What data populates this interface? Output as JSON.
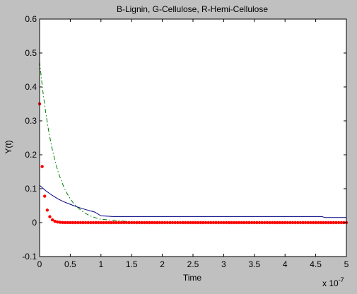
{
  "chart_data": {
    "type": "line",
    "title": "B-Lignin, G-Cellulose, R-Hemi-Cellulose",
    "xlabel": "Time",
    "ylabel": "Y(t)",
    "x_exponent_label": "x 10",
    "x_exponent_power": "-7",
    "xlim": [
      0,
      5
    ],
    "ylim": [
      -0.1,
      0.6
    ],
    "x_ticks": [
      0,
      0.5,
      1,
      1.5,
      2,
      2.5,
      3,
      3.5,
      4,
      4.5,
      5
    ],
    "x_tick_labels": [
      "0",
      "0.5",
      "1",
      "1.5",
      "2",
      "2.5",
      "3",
      "3.5",
      "4",
      "4.5",
      "5"
    ],
    "y_ticks": [
      -0.1,
      0,
      0.1,
      0.2,
      0.3,
      0.4,
      0.5,
      0.6
    ],
    "y_tick_labels": [
      "-0.1",
      "0",
      "0.1",
      "0.2",
      "0.3",
      "0.4",
      "0.5",
      "0.6"
    ],
    "grid": false,
    "series": [
      {
        "color": "#00007f",
        "style": "solid",
        "x": [
          0,
          0.1,
          0.2,
          0.3,
          0.4,
          0.5,
          0.6,
          0.7,
          0.8,
          0.9,
          1.0,
          1.2,
          1.5,
          2.0,
          3.0,
          4.0,
          4.6,
          4.65,
          5.0
        ],
        "y": [
          0.11,
          0.094,
          0.081,
          0.07,
          0.061,
          0.054,
          0.047,
          0.041,
          0.036,
          0.031,
          0.02,
          0.018,
          0.018,
          0.018,
          0.018,
          0.018,
          0.018,
          0.015,
          0.015
        ]
      },
      {
        "color": "#007f00",
        "style": "dash-dot",
        "x": [
          0,
          0.05,
          0.1,
          0.15,
          0.2,
          0.25,
          0.3,
          0.35,
          0.4,
          0.45,
          0.5,
          0.55,
          0.6,
          0.65,
          0.7,
          0.75,
          0.8,
          0.85,
          0.9,
          0.95,
          1.0,
          1.5,
          2.0,
          3.0,
          4.0,
          5.0
        ],
        "y": [
          0.475,
          0.392,
          0.324,
          0.268,
          0.221,
          0.183,
          0.151,
          0.125,
          0.103,
          0.085,
          0.07,
          0.058,
          0.048,
          0.04,
          0.033,
          0.027,
          0.022,
          0.018,
          0.015,
          0.012,
          0.01,
          0.002,
          0.0,
          0.0,
          0.0,
          0.0
        ]
      },
      {
        "color": "#ff0000",
        "style": "markers",
        "marker": "dot",
        "x_start": 0,
        "x_end": 5,
        "y_start": 0.35,
        "decay_rate": 18,
        "n_points": 121
      }
    ]
  }
}
